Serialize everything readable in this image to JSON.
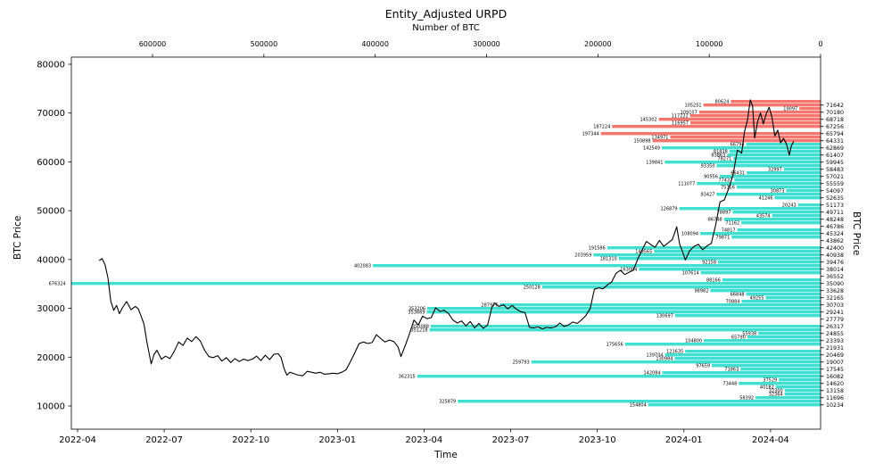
{
  "title": "Entity_Adjusted URPD",
  "axes": {
    "top": {
      "label": "Number of BTC",
      "ticks": [
        600000,
        500000,
        400000,
        300000,
        200000,
        100000,
        0
      ]
    },
    "bottom": {
      "label": "Time",
      "ticks": [
        "2022-04",
        "2022-07",
        "2022-10",
        "2023-01",
        "2023-04",
        "2023-07",
        "2023-10",
        "2024-01",
        "2024-04"
      ]
    },
    "left": {
      "label": "BTC Price",
      "ticks": [
        10000,
        20000,
        30000,
        40000,
        50000,
        60000,
        70000,
        80000
      ]
    },
    "right": {
      "label": "BTC Price",
      "ticks": [
        71642,
        70180,
        68718,
        67256,
        65794,
        64331,
        62869,
        61407,
        59945,
        58483,
        57021,
        55559,
        54097,
        52635,
        51173,
        49711,
        48248,
        46786,
        45324,
        43862,
        42400,
        40938,
        39476,
        38014,
        36552,
        35090,
        33628,
        32165,
        30703,
        29241,
        27779,
        26317,
        24855,
        23393,
        21931,
        20469,
        19007,
        17545,
        16082,
        14620,
        13158,
        11696,
        10234
      ]
    }
  },
  "chart_data": {
    "type": "bar",
    "orientation": "horizontal",
    "title": "Entity_Adjusted URPD",
    "value_axis_label": "Number of BTC",
    "time_axis_label": "Time",
    "price_axis_label": "BTC Price",
    "value_range_btc": [
      0,
      676324
    ],
    "price_range": [
      10234,
      72373
    ],
    "colors": {
      "above_price": "#f4766e",
      "below_price": "#40E0D0",
      "price_line": "#000000"
    },
    "bars_format": [
      "price",
      "btc",
      "color(r=above current price, c=below)"
    ],
    "bars": [
      [
        72373,
        80624,
        "r"
      ],
      [
        71642,
        105251,
        "r"
      ],
      [
        70911,
        19097,
        "r"
      ],
      [
        70180,
        109107,
        "r"
      ],
      [
        69449,
        117222,
        "r"
      ],
      [
        68718,
        145302,
        "r"
      ],
      [
        67987,
        116957,
        "r"
      ],
      [
        67256,
        187224,
        "r"
      ],
      [
        65794,
        197344,
        "r"
      ],
      [
        65062,
        134971,
        "r"
      ],
      [
        64331,
        150898,
        "r"
      ],
      [
        63600,
        66794,
        "c"
      ],
      [
        62869,
        142549,
        "c"
      ],
      [
        62138,
        81838,
        "c"
      ],
      [
        61407,
        83863,
        "c"
      ],
      [
        60676,
        78271,
        "c"
      ],
      [
        59945,
        139841,
        "c"
      ],
      [
        59214,
        93350,
        "c"
      ],
      [
        58483,
        32997,
        "c"
      ],
      [
        57752,
        66431,
        "c"
      ],
      [
        57021,
        90556,
        "c"
      ],
      [
        56290,
        77437,
        "c"
      ],
      [
        55559,
        111077,
        "c"
      ],
      [
        54828,
        75356,
        "c"
      ],
      [
        54097,
        30873,
        "c"
      ],
      [
        53366,
        93427,
        "c"
      ],
      [
        52635,
        41246,
        "c"
      ],
      [
        51173,
        20243,
        "c"
      ],
      [
        50442,
        126879,
        "c"
      ],
      [
        49711,
        78897,
        "c"
      ],
      [
        48979,
        43574,
        "c"
      ],
      [
        48248,
        86748,
        "c"
      ],
      [
        47517,
        71162,
        "c"
      ],
      [
        46055,
        74817,
        "c"
      ],
      [
        45324,
        108094,
        "c"
      ],
      [
        44593,
        79871,
        "c"
      ],
      [
        42400,
        191586,
        "c"
      ],
      [
        41669,
        149565,
        "c"
      ],
      [
        40938,
        203959,
        "c"
      ],
      [
        40207,
        181310,
        "c"
      ],
      [
        39476,
        92158,
        "c"
      ],
      [
        38745,
        402083,
        "c"
      ],
      [
        38014,
        163084,
        "c"
      ],
      [
        37283,
        107614,
        "c"
      ],
      [
        35821,
        88166,
        "c"
      ],
      [
        35090,
        676324,
        "c"
      ],
      [
        34359,
        250128,
        "c"
      ],
      [
        33628,
        98982,
        "c"
      ],
      [
        32896,
        66848,
        "c"
      ],
      [
        32165,
        49255,
        "c"
      ],
      [
        31434,
        70884,
        "c"
      ],
      [
        30703,
        287976,
        "c"
      ],
      [
        29972,
        353206,
        "c"
      ],
      [
        29241,
        353669,
        "c"
      ],
      [
        28510,
        130697,
        "c"
      ],
      [
        26317,
        350088,
        "c"
      ],
      [
        25586,
        351218,
        "c"
      ],
      [
        24855,
        55938,
        "c"
      ],
      [
        24124,
        65790,
        "c"
      ],
      [
        23393,
        104800,
        "c"
      ],
      [
        22662,
        175656,
        "c"
      ],
      [
        21200,
        121635,
        "c"
      ],
      [
        20469,
        139704,
        "c"
      ],
      [
        19738,
        130984,
        "c"
      ],
      [
        19007,
        259793,
        "c"
      ],
      [
        18276,
        97659,
        "c"
      ],
      [
        17545,
        71863,
        "c"
      ],
      [
        16813,
        142084,
        "c"
      ],
      [
        16082,
        362315,
        "c"
      ],
      [
        15351,
        37529,
        "c"
      ],
      [
        14620,
        73448,
        "c"
      ],
      [
        13889,
        40182,
        "c"
      ],
      [
        13158,
        32300,
        "c"
      ],
      [
        12427,
        32364,
        "c"
      ],
      [
        11696,
        58392,
        "c"
      ],
      [
        10965,
        325879,
        "c"
      ],
      [
        10234,
        154804,
        "c"
      ]
    ],
    "price_line": {
      "x_unit": "months_since_2022-04",
      "points": [
        [
          0.75,
          39800
        ],
        [
          0.85,
          40200
        ],
        [
          0.95,
          38900
        ],
        [
          1.05,
          36300
        ],
        [
          1.15,
          31500
        ],
        [
          1.25,
          29600
        ],
        [
          1.35,
          30600
        ],
        [
          1.45,
          28900
        ],
        [
          1.55,
          30100
        ],
        [
          1.7,
          31400
        ],
        [
          1.85,
          29700
        ],
        [
          2.0,
          30400
        ],
        [
          2.1,
          29900
        ],
        [
          2.2,
          28400
        ],
        [
          2.3,
          26700
        ],
        [
          2.4,
          23100
        ],
        [
          2.5,
          20100
        ],
        [
          2.55,
          18600
        ],
        [
          2.65,
          20600
        ],
        [
          2.75,
          21400
        ],
        [
          2.9,
          19600
        ],
        [
          3.05,
          20200
        ],
        [
          3.2,
          19700
        ],
        [
          3.35,
          21200
        ],
        [
          3.5,
          23100
        ],
        [
          3.65,
          22400
        ],
        [
          3.8,
          23900
        ],
        [
          3.95,
          23200
        ],
        [
          4.1,
          24200
        ],
        [
          4.25,
          23300
        ],
        [
          4.4,
          21400
        ],
        [
          4.55,
          20100
        ],
        [
          4.7,
          19900
        ],
        [
          4.85,
          20300
        ],
        [
          5.0,
          19200
        ],
        [
          5.15,
          19900
        ],
        [
          5.3,
          18900
        ],
        [
          5.45,
          19700
        ],
        [
          5.6,
          19100
        ],
        [
          5.75,
          19600
        ],
        [
          5.9,
          19300
        ],
        [
          6.05,
          19600
        ],
        [
          6.2,
          20200
        ],
        [
          6.35,
          19300
        ],
        [
          6.5,
          20400
        ],
        [
          6.65,
          19500
        ],
        [
          6.8,
          20600
        ],
        [
          6.95,
          20700
        ],
        [
          7.05,
          19900
        ],
        [
          7.15,
          17700
        ],
        [
          7.25,
          16300
        ],
        [
          7.35,
          16900
        ],
        [
          7.5,
          16600
        ],
        [
          7.65,
          16300
        ],
        [
          7.8,
          16200
        ],
        [
          7.95,
          17100
        ],
        [
          8.1,
          16900
        ],
        [
          8.25,
          16700
        ],
        [
          8.4,
          16900
        ],
        [
          8.55,
          16500
        ],
        [
          8.7,
          16600
        ],
        [
          8.85,
          16700
        ],
        [
          9.0,
          16600
        ],
        [
          9.15,
          16900
        ],
        [
          9.3,
          17400
        ],
        [
          9.45,
          19100
        ],
        [
          9.6,
          20900
        ],
        [
          9.75,
          22800
        ],
        [
          9.9,
          23100
        ],
        [
          10.05,
          22800
        ],
        [
          10.2,
          23000
        ],
        [
          10.35,
          24600
        ],
        [
          10.5,
          23800
        ],
        [
          10.65,
          23100
        ],
        [
          10.8,
          23500
        ],
        [
          10.95,
          23200
        ],
        [
          11.1,
          22100
        ],
        [
          11.2,
          20100
        ],
        [
          11.35,
          22400
        ],
        [
          11.5,
          24900
        ],
        [
          11.65,
          27600
        ],
        [
          11.8,
          26600
        ],
        [
          11.95,
          28400
        ],
        [
          12.1,
          27900
        ],
        [
          12.25,
          28100
        ],
        [
          12.4,
          30100
        ],
        [
          12.55,
          29400
        ],
        [
          12.7,
          29600
        ],
        [
          12.85,
          28900
        ],
        [
          13.0,
          27600
        ],
        [
          13.15,
          27000
        ],
        [
          13.3,
          27400
        ],
        [
          13.45,
          26400
        ],
        [
          13.6,
          27300
        ],
        [
          13.75,
          26000
        ],
        [
          13.9,
          26900
        ],
        [
          14.05,
          25900
        ],
        [
          14.2,
          26600
        ],
        [
          14.35,
          30200
        ],
        [
          14.45,
          31100
        ],
        [
          14.6,
          30400
        ],
        [
          14.75,
          30700
        ],
        [
          14.9,
          29900
        ],
        [
          15.05,
          30600
        ],
        [
          15.2,
          29800
        ],
        [
          15.35,
          29300
        ],
        [
          15.5,
          29100
        ],
        [
          15.65,
          26100
        ],
        [
          15.8,
          26000
        ],
        [
          15.95,
          26200
        ],
        [
          16.1,
          25800
        ],
        [
          16.25,
          26100
        ],
        [
          16.4,
          26000
        ],
        [
          16.55,
          26200
        ],
        [
          16.7,
          27000
        ],
        [
          16.85,
          26300
        ],
        [
          17.0,
          26600
        ],
        [
          17.15,
          27200
        ],
        [
          17.3,
          26900
        ],
        [
          17.45,
          27600
        ],
        [
          17.6,
          28500
        ],
        [
          17.75,
          29900
        ],
        [
          17.9,
          33900
        ],
        [
          18.05,
          34200
        ],
        [
          18.2,
          34000
        ],
        [
          18.35,
          34800
        ],
        [
          18.5,
          35400
        ],
        [
          18.65,
          37200
        ],
        [
          18.8,
          37800
        ],
        [
          18.95,
          36900
        ],
        [
          19.1,
          37400
        ],
        [
          19.25,
          37800
        ],
        [
          19.4,
          40100
        ],
        [
          19.55,
          41900
        ],
        [
          19.7,
          43700
        ],
        [
          19.85,
          43100
        ],
        [
          20.0,
          42500
        ],
        [
          20.15,
          43900
        ],
        [
          20.3,
          42700
        ],
        [
          20.45,
          43400
        ],
        [
          20.6,
          44100
        ],
        [
          20.75,
          46700
        ],
        [
          20.85,
          43200
        ],
        [
          20.95,
          41600
        ],
        [
          21.05,
          39900
        ],
        [
          21.2,
          41800
        ],
        [
          21.35,
          42700
        ],
        [
          21.5,
          43100
        ],
        [
          21.65,
          42000
        ],
        [
          21.8,
          42800
        ],
        [
          21.95,
          43300
        ],
        [
          22.1,
          47100
        ],
        [
          22.25,
          51800
        ],
        [
          22.4,
          52200
        ],
        [
          22.55,
          54500
        ],
        [
          22.7,
          57300
        ],
        [
          22.85,
          62400
        ],
        [
          23.0,
          61800
        ],
        [
          23.1,
          66200
        ],
        [
          23.2,
          68500
        ],
        [
          23.3,
          72700
        ],
        [
          23.38,
          71400
        ],
        [
          23.45,
          64900
        ],
        [
          23.55,
          68200
        ],
        [
          23.65,
          70000
        ],
        [
          23.75,
          67800
        ],
        [
          23.85,
          69800
        ],
        [
          23.95,
          71200
        ],
        [
          24.05,
          69100
        ],
        [
          24.15,
          65300
        ],
        [
          24.25,
          66500
        ],
        [
          24.35,
          63900
        ],
        [
          24.45,
          64800
        ],
        [
          24.55,
          63700
        ],
        [
          24.65,
          61400
        ],
        [
          24.72,
          63300
        ],
        [
          24.8,
          64200
        ]
      ]
    }
  }
}
